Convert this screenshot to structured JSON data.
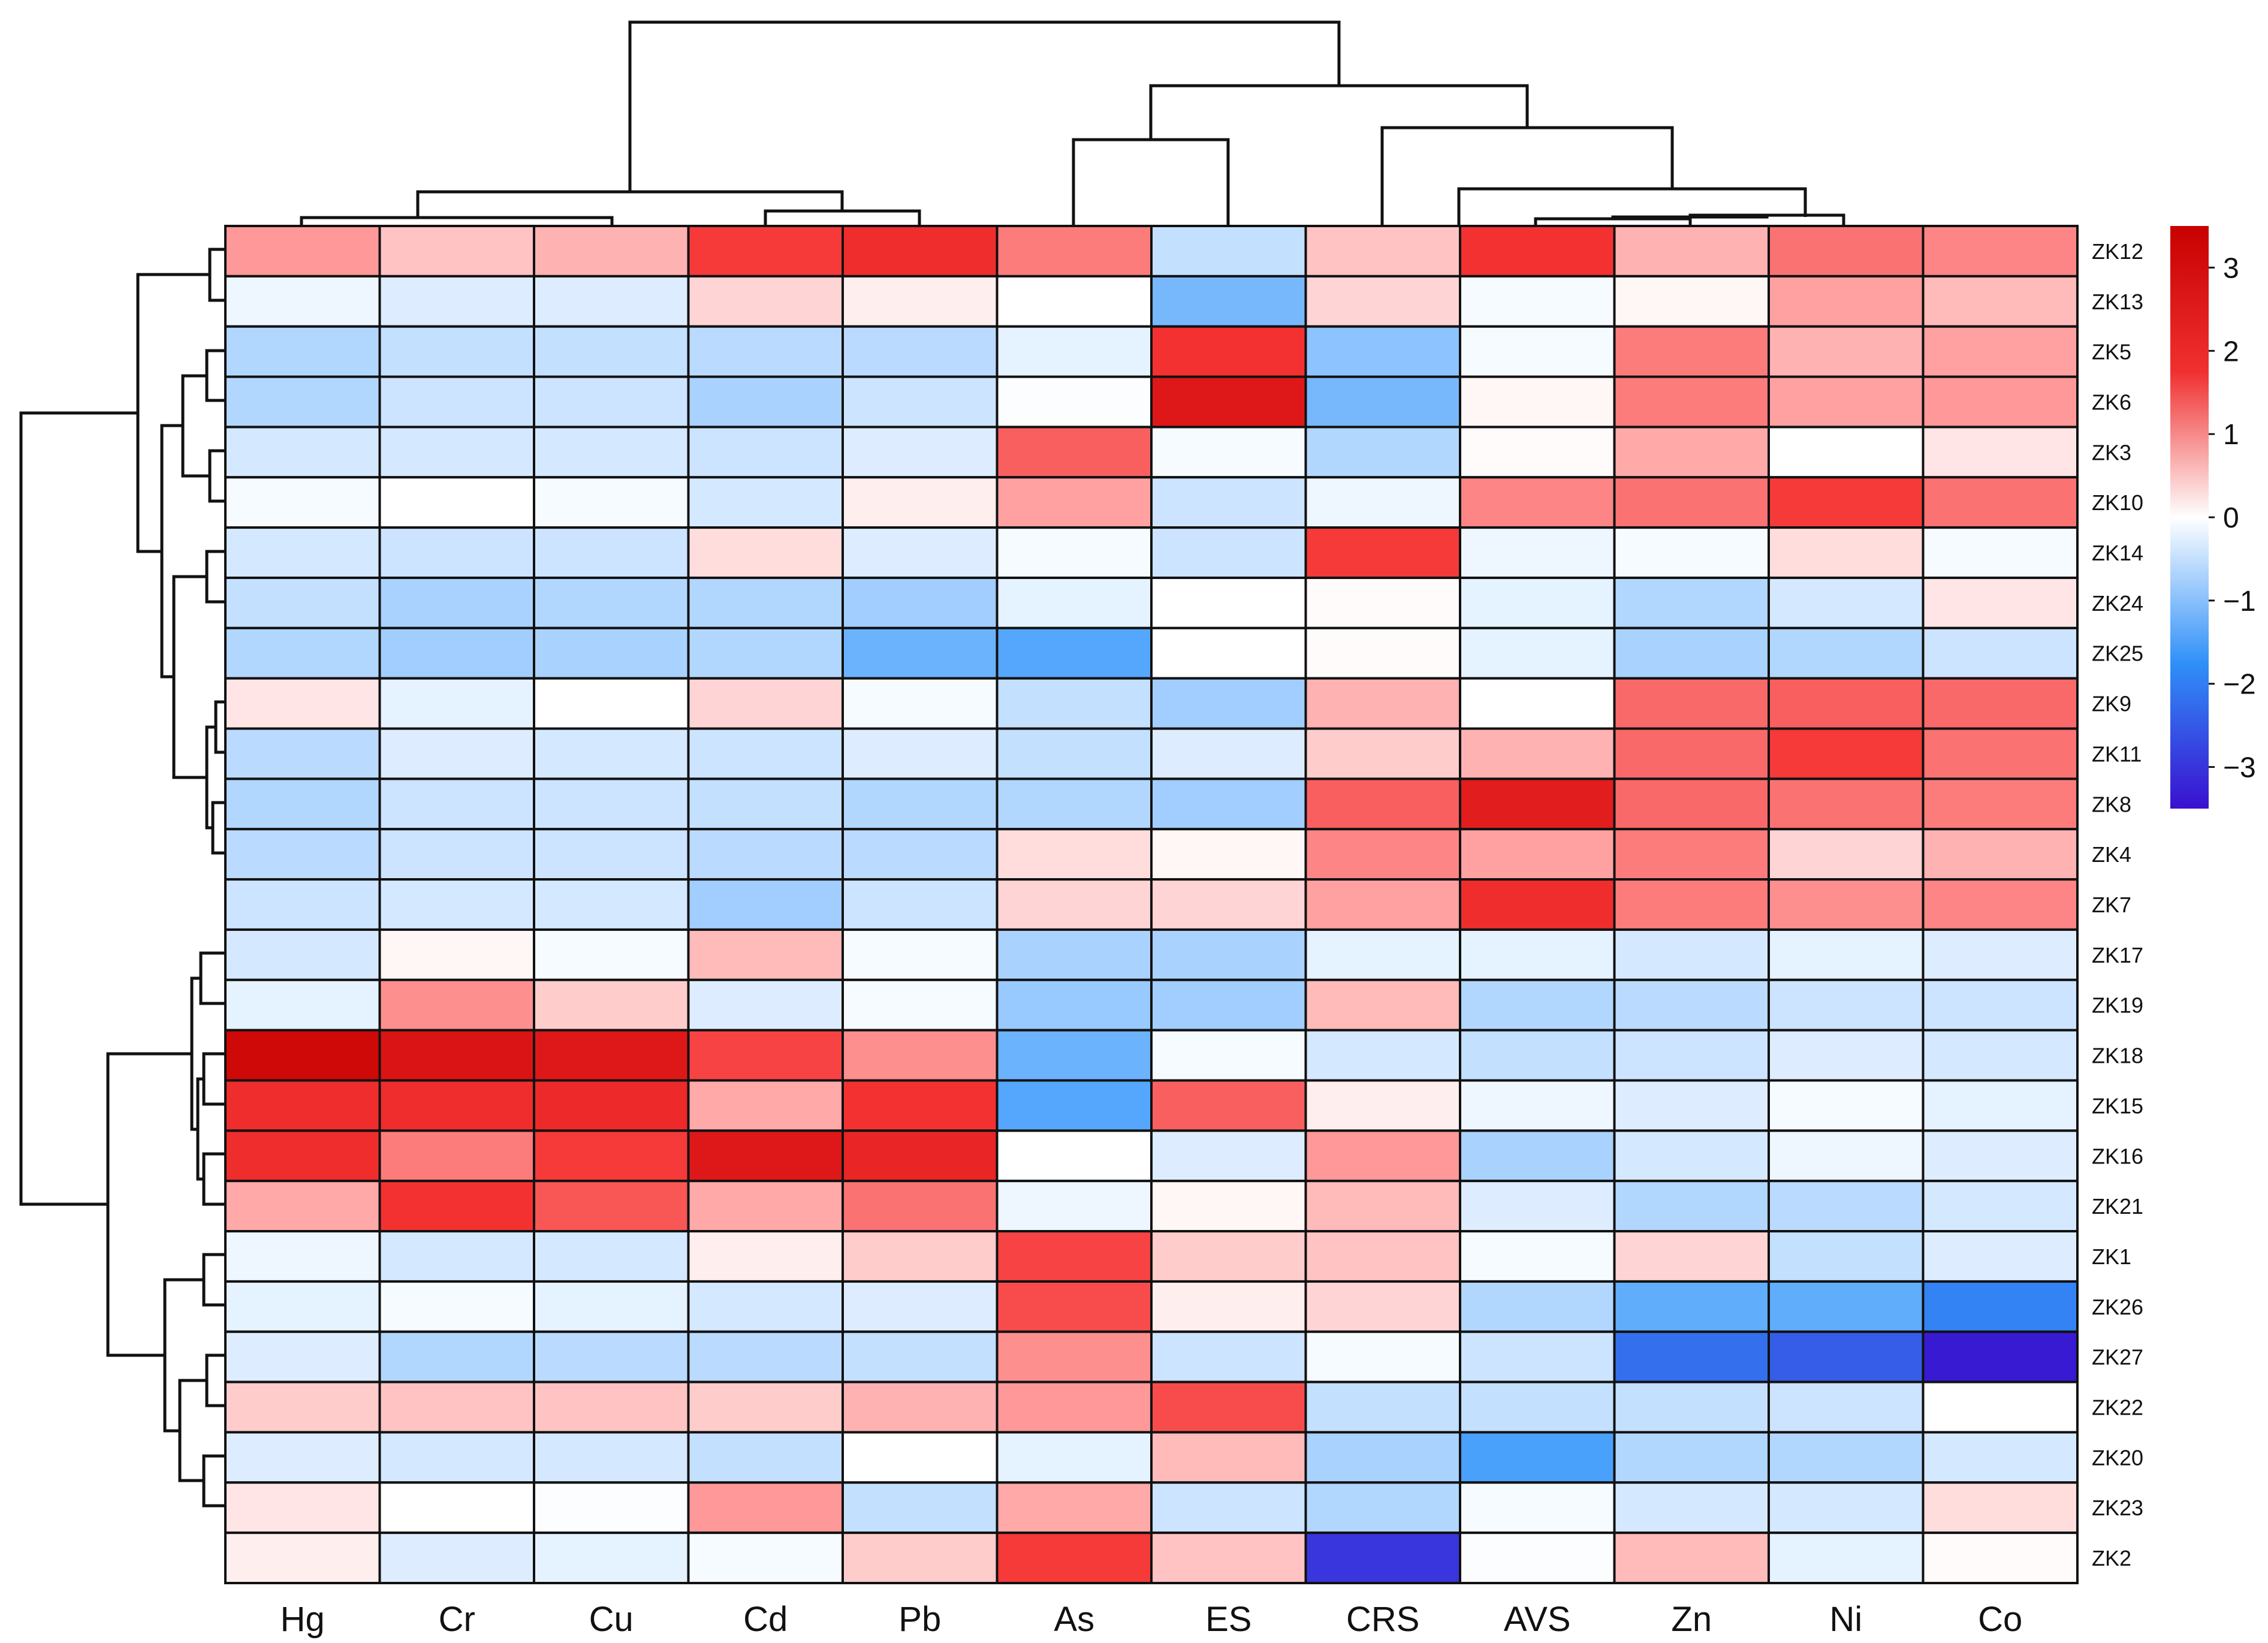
{
  "chart_data": {
    "type": "heatmap",
    "title": "",
    "columns": [
      "Hg",
      "Cr",
      "Cu",
      "Cd",
      "Pb",
      "As",
      "ES",
      "CRS",
      "AVS",
      "Zn",
      "Ni",
      "Co"
    ],
    "rows": [
      "ZK12",
      "ZK13",
      "ZK5",
      "ZK6",
      "ZK3",
      "ZK10",
      "ZK14",
      "ZK24",
      "ZK25",
      "ZK9",
      "ZK11",
      "ZK8",
      "ZK4",
      "ZK7",
      "ZK17",
      "ZK19",
      "ZK18",
      "ZK15",
      "ZK16",
      "ZK21",
      "ZK1",
      "ZK26",
      "ZK27",
      "ZK22",
      "ZK20",
      "ZK23",
      "ZK2"
    ],
    "values": [
      [
        1.2,
        0.7,
        0.9,
        2.2,
        2.4,
        1.5,
        -0.7,
        0.7,
        2.3,
        0.9,
        1.6,
        1.4
      ],
      [
        -0.2,
        -0.4,
        -0.4,
        0.5,
        0.2,
        0.0,
        -1.5,
        0.5,
        -0.1,
        0.1,
        1.1,
        0.8
      ],
      [
        -0.9,
        -0.7,
        -0.7,
        -0.8,
        -0.8,
        -0.3,
        2.3,
        -1.3,
        -0.1,
        1.5,
        0.9,
        1.1
      ],
      [
        -0.9,
        -0.6,
        -0.6,
        -1.0,
        -0.6,
        -0.05,
        2.9,
        -1.5,
        0.1,
        1.5,
        1.1,
        1.2
      ],
      [
        -0.5,
        -0.5,
        -0.5,
        -0.6,
        -0.4,
        1.8,
        -0.1,
        -0.9,
        0.05,
        1.0,
        0.0,
        0.3
      ],
      [
        -0.1,
        0.0,
        -0.1,
        -0.5,
        0.2,
        1.1,
        -0.6,
        -0.2,
        1.4,
        1.6,
        2.2,
        1.6
      ],
      [
        -0.5,
        -0.6,
        -0.6,
        0.4,
        -0.4,
        -0.1,
        -0.6,
        2.2,
        -0.2,
        -0.1,
        0.4,
        -0.1
      ],
      [
        -0.7,
        -1.0,
        -0.9,
        -0.9,
        -1.1,
        -0.3,
        0.0,
        0.05,
        -0.3,
        -0.9,
        -0.5,
        0.3
      ],
      [
        -0.9,
        -1.1,
        -1.0,
        -0.9,
        -1.6,
        -1.8,
        0.0,
        0.05,
        -0.3,
        -1.0,
        -0.9,
        -0.6
      ],
      [
        0.3,
        -0.3,
        0.0,
        0.5,
        -0.1,
        -0.7,
        -1.1,
        0.9,
        0.0,
        1.7,
        1.8,
        1.7
      ],
      [
        -0.8,
        -0.4,
        -0.5,
        -0.6,
        -0.4,
        -0.7,
        -0.4,
        0.6,
        0.9,
        1.7,
        2.2,
        1.6
      ],
      [
        -0.9,
        -0.6,
        -0.6,
        -0.7,
        -0.9,
        -0.9,
        -1.1,
        1.8,
        2.8,
        1.7,
        1.6,
        1.5
      ],
      [
        -0.8,
        -0.6,
        -0.6,
        -0.8,
        -0.8,
        0.4,
        0.1,
        1.4,
        1.1,
        1.5,
        0.5,
        0.9
      ],
      [
        -0.6,
        -0.5,
        -0.5,
        -1.1,
        -0.6,
        0.5,
        0.5,
        1.1,
        2.4,
        1.5,
        1.3,
        1.4
      ],
      [
        -0.5,
        0.1,
        -0.1,
        0.8,
        -0.1,
        -1.0,
        -1.0,
        -0.3,
        -0.3,
        -0.5,
        -0.3,
        -0.4
      ],
      [
        -0.3,
        1.3,
        0.6,
        -0.4,
        -0.1,
        -1.2,
        -1.1,
        0.8,
        -0.9,
        -0.8,
        -0.6,
        -0.6
      ],
      [
        3.3,
        3.0,
        2.9,
        2.1,
        1.3,
        -1.6,
        -0.1,
        -0.5,
        -0.7,
        -0.6,
        -0.4,
        -0.5
      ],
      [
        2.4,
        2.4,
        2.5,
        1.0,
        2.3,
        -1.8,
        1.8,
        0.2,
        -0.2,
        -0.4,
        -0.1,
        -0.3
      ],
      [
        2.4,
        1.5,
        2.2,
        2.9,
        2.6,
        0.0,
        -0.4,
        1.2,
        -1.0,
        -0.5,
        -0.2,
        -0.4
      ],
      [
        1.0,
        2.3,
        1.9,
        1.0,
        1.6,
        -0.2,
        0.1,
        0.8,
        -0.4,
        -0.9,
        -0.8,
        -0.5
      ],
      [
        -0.2,
        -0.5,
        -0.5,
        0.2,
        0.6,
        2.1,
        0.6,
        0.7,
        -0.1,
        0.5,
        -0.7,
        -0.4
      ],
      [
        -0.3,
        -0.1,
        -0.3,
        -0.5,
        -0.4,
        2.0,
        0.2,
        0.5,
        -0.9,
        -1.7,
        -1.7,
        -2.3
      ],
      [
        -0.4,
        -0.9,
        -0.8,
        -0.8,
        -0.7,
        1.3,
        -0.6,
        -0.1,
        -0.6,
        -2.5,
        -2.7,
        -3.4
      ],
      [
        0.6,
        0.7,
        0.7,
        0.6,
        0.9,
        1.2,
        2.0,
        -0.7,
        -0.7,
        -0.7,
        -0.6,
        0.0
      ],
      [
        -0.4,
        -0.5,
        -0.5,
        -0.7,
        0.0,
        -0.3,
        0.8,
        -1.0,
        -1.9,
        -0.9,
        -0.9,
        -0.5
      ],
      [
        0.3,
        0.0,
        -0.05,
        1.2,
        -0.7,
        1.0,
        -0.6,
        -0.9,
        -0.1,
        -0.5,
        -0.5,
        0.4
      ],
      [
        0.2,
        -0.4,
        -0.3,
        -0.1,
        0.6,
        2.2,
        0.7,
        -3.1,
        -0.05,
        0.8,
        -0.3,
        0.05
      ]
    ],
    "color_scale": {
      "min": -3.5,
      "max": 3.5,
      "low_color": "#3a10d0",
      "mid_color": "#ffffff",
      "high_color": "#c80000",
      "ticks": [
        3,
        2,
        1,
        0,
        -1,
        -2,
        -3
      ],
      "tick_labels": [
        "3",
        "2",
        "1",
        "0",
        "−1",
        "−2",
        "−3"
      ]
    },
    "column_dendrogram": "((Hg,(Cr,Cu)),(Cd,Pb)),((As,ES),(CRS,(AVS,(Zn,(Ni,Co)))))",
    "row_dendrogram": "present",
    "legend_position": "right"
  }
}
